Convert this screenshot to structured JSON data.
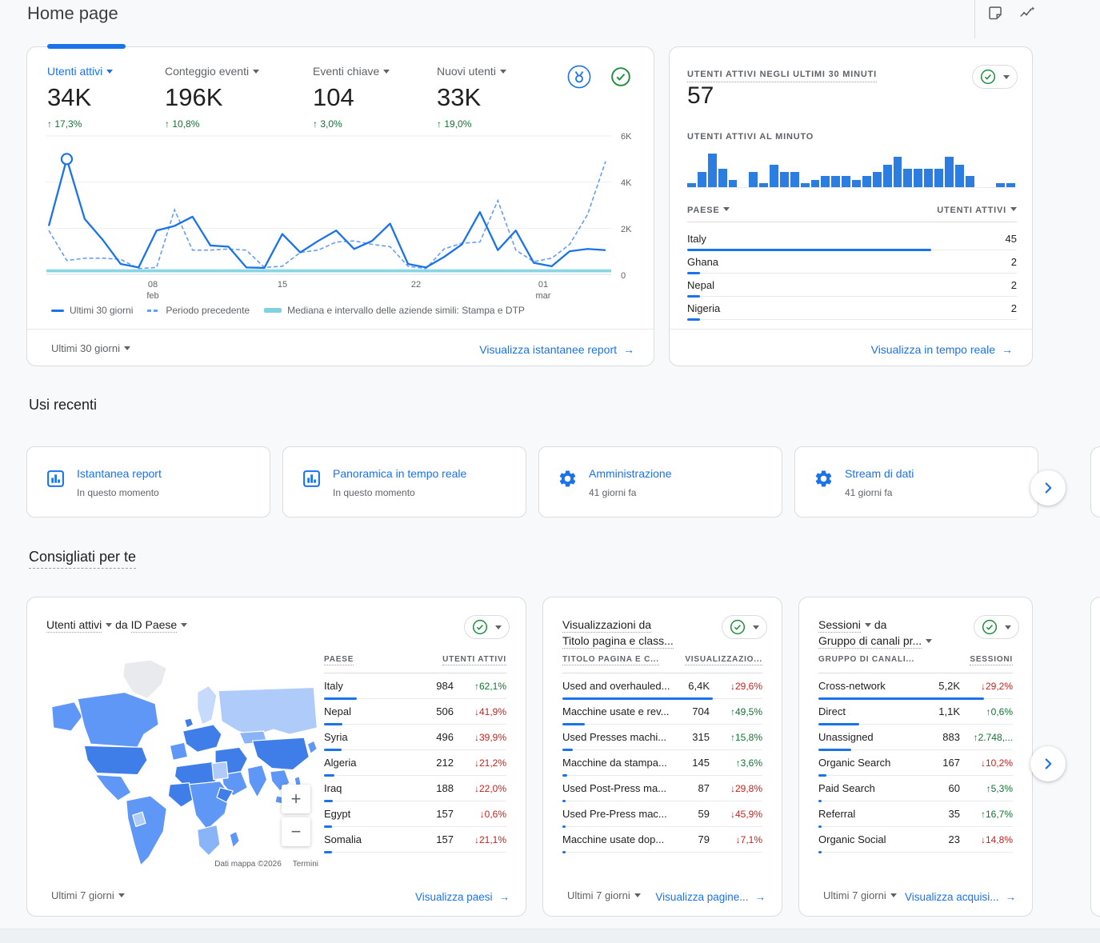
{
  "theme": {
    "accent": "#1a73e8",
    "green": "#137333",
    "red": "#c5221f",
    "teal": "#7fd3e0",
    "text": "#202124",
    "muted": "#5f6368",
    "border": "#dadce0",
    "bg": "#f8f9fa",
    "prevline": "#669df6",
    "barblue": "#2b7de2"
  },
  "header": {
    "title": "Home page",
    "icons": [
      "note-icon",
      "insights-icon"
    ]
  },
  "overview_card": {
    "metrics": [
      {
        "label": "Utenti attivi",
        "value": "34K",
        "delta": "17,3%",
        "direction": "up",
        "selected": true
      },
      {
        "label": "Conteggio eventi",
        "value": "196K",
        "delta": "10,8%",
        "direction": "up",
        "selected": false
      },
      {
        "label": "Eventi chiave",
        "value": "104",
        "delta": "3,0%",
        "direction": "up",
        "selected": false
      },
      {
        "label": "Nuovi utenti",
        "value": "33K",
        "delta": "19,0%",
        "direction": "up",
        "selected": false
      }
    ],
    "y_ticks": [
      "6K",
      "4K",
      "2K",
      "0"
    ],
    "x_ticks": [
      {
        "l1": "08",
        "l2": "feb"
      },
      {
        "l1": "15",
        "l2": ""
      },
      {
        "l1": "22",
        "l2": ""
      },
      {
        "l1": "01",
        "l2": "mar"
      }
    ],
    "legend": [
      {
        "label": "Ultimi 30 giorni"
      },
      {
        "label": "Periodo precedente"
      },
      {
        "label": "Mediana e intervallo delle aziende simili: Stampa e DTP"
      }
    ],
    "footer": {
      "range": "Ultimi 30 giorni",
      "link": "Visualizza istantanee report"
    }
  },
  "chart_data": [
    {
      "type": "line",
      "title": "Utenti attivi - Ultimi 30 giorni",
      "x_tick_labels": [
        "08 feb",
        "15",
        "22",
        "01 mar"
      ],
      "ylim": [
        0,
        6000
      ],
      "y_ticks": [
        0,
        2000,
        4000,
        6000
      ],
      "grid": true,
      "legend_position": "bottom",
      "series": [
        {
          "name": "Ultimi 30 giorni",
          "style": "solid",
          "values": [
            2100,
            5000,
            2400,
            1500,
            450,
            300,
            1900,
            2100,
            2500,
            1250,
            1200,
            300,
            280,
            1750,
            950,
            1450,
            1900,
            1100,
            1450,
            2200,
            450,
            300,
            750,
            1300,
            2700,
            1050,
            1900,
            500,
            350,
            1000,
            1100,
            1050
          ]
        },
        {
          "name": "Periodo precedente",
          "style": "dashed",
          "values": [
            1900,
            600,
            700,
            700,
            650,
            250,
            300,
            2800,
            1050,
            1050,
            1100,
            1050,
            300,
            350,
            950,
            1050,
            1400,
            1450,
            1300,
            1200,
            350,
            250,
            1100,
            1350,
            1400,
            3200,
            1050,
            550,
            700,
            1300,
            2600,
            4900
          ]
        }
      ],
      "median_band": {
        "label": "Mediana e intervallo delle aziende simili: Stampa e DTP",
        "median": 150,
        "range": [
          70,
          240
        ]
      },
      "highlight_point": {
        "series": "Ultimi 30 giorni",
        "index": 1,
        "value": 5000
      }
    },
    {
      "type": "bar",
      "title": "Utenti attivi al minuto",
      "ylim": [
        0,
        10
      ],
      "values": [
        1,
        4,
        9,
        5,
        2,
        0,
        4,
        1,
        6,
        4,
        4,
        1,
        2,
        3,
        3,
        3,
        2,
        3,
        4,
        6,
        8,
        5,
        5,
        5,
        5,
        8,
        6,
        3,
        0,
        0,
        1,
        1
      ]
    }
  ],
  "realtime_card": {
    "title": "UTENTI ATTIVI NEGLI ULTIMI 30 MINUTI",
    "value": "57",
    "bars_title": "UTENTI ATTIVI AL MINUTO",
    "table": {
      "col1": "PAESE",
      "col2": "UTENTI ATTIVI",
      "rows": [
        {
          "name": "Italy",
          "value": "45",
          "bar_pct": 74
        },
        {
          "name": "Ghana",
          "value": "2",
          "bar_pct": 4
        },
        {
          "name": "Nepal",
          "value": "2",
          "bar_pct": 4
        },
        {
          "name": "Nigeria",
          "value": "2",
          "bar_pct": 4
        }
      ]
    },
    "link": "Visualizza in tempo reale"
  },
  "recent": {
    "title": "Usi recenti",
    "cards": [
      {
        "icon": "report-snapshot-icon",
        "title": "Istantanea report",
        "subtitle": "In questo momento"
      },
      {
        "icon": "realtime-overview-icon",
        "title": "Panoramica in tempo reale",
        "subtitle": "In questo momento"
      },
      {
        "icon": "admin-gear-icon",
        "title": "Amministrazione",
        "subtitle": "41 giorni fa"
      },
      {
        "icon": "data-stream-gear-icon",
        "title": "Stream di dati",
        "subtitle": "41 giorni fa"
      }
    ]
  },
  "recommended": {
    "title": "Consigliati per te",
    "geo_card": {
      "metric": "Utenti attivi",
      "connector": "da",
      "dimension": "ID Paese",
      "col1": "PAESE",
      "col2": "UTENTI ATTIVI",
      "rows": [
        {
          "name": "Italy",
          "value": "984",
          "delta": "62,1%",
          "dir": "up",
          "bar_pct": 18
        },
        {
          "name": "Nepal",
          "value": "506",
          "delta": "41,9%",
          "dir": "down",
          "bar_pct": 10
        },
        {
          "name": "Syria",
          "value": "496",
          "delta": "39,9%",
          "dir": "down",
          "bar_pct": 9.5
        },
        {
          "name": "Algeria",
          "value": "212",
          "delta": "21,2%",
          "dir": "down",
          "bar_pct": 5.5
        },
        {
          "name": "Iraq",
          "value": "188",
          "delta": "22,0%",
          "dir": "down",
          "bar_pct": 5
        },
        {
          "name": "Egypt",
          "value": "157",
          "delta": "0,6%",
          "dir": "down",
          "bar_pct": 4.5
        },
        {
          "name": "Somalia",
          "value": "157",
          "delta": "21,1%",
          "dir": "down",
          "bar_pct": 4.5
        }
      ],
      "map_attribution": "Dati mappa ©2026",
      "map_terms": "Termini",
      "zoom_in": "+",
      "zoom_out": "−",
      "footer": {
        "range": "Ultimi 7 giorni",
        "link": "Visualizza paesi"
      }
    },
    "pages_card": {
      "title_line1": "Visualizzazioni da",
      "title_line2": "Titolo pagina e class...",
      "col1": "TITOLO PAGINA E C...",
      "col2": "VISUALIZZAZIO...",
      "rows": [
        {
          "name": "Used and overhauled...",
          "value": "6,4K",
          "delta": "29,6%",
          "dir": "down",
          "bar_pct": 75
        },
        {
          "name": "Macchine usate e rev...",
          "value": "704",
          "delta": "49,5%",
          "dir": "up",
          "bar_pct": 11
        },
        {
          "name": "Used Presses machi...",
          "value": "315",
          "delta": "15,8%",
          "dir": "up",
          "bar_pct": 5
        },
        {
          "name": "Macchine da stampa...",
          "value": "145",
          "delta": "3,6%",
          "dir": "up",
          "bar_pct": 2.5
        },
        {
          "name": "Used Post-Press ma...",
          "value": "87",
          "delta": "29,8%",
          "dir": "down",
          "bar_pct": 1.5
        },
        {
          "name": "Used Pre-Press mac...",
          "value": "59",
          "delta": "45,9%",
          "dir": "down",
          "bar_pct": 1.5
        },
        {
          "name": "Macchine usate dop...",
          "value": "79",
          "delta": "7,1%",
          "dir": "down",
          "bar_pct": 1.5
        }
      ],
      "footer": {
        "range": "Ultimi 7 giorni",
        "link": "Visualizza pagine..."
      }
    },
    "channels_card": {
      "title_metric": "Sessioni",
      "title_connector": "da",
      "title_dimension": "Gruppo di canali pr...",
      "col1": "GRUPPO DI CANALI...",
      "col2": "SESSIONI",
      "rows": [
        {
          "name": "Cross-network",
          "value": "5,2K",
          "delta": "29,2%",
          "dir": "down",
          "bar_pct": 85
        },
        {
          "name": "Direct",
          "value": "1,1K",
          "delta": "0,6%",
          "dir": "up",
          "bar_pct": 21
        },
        {
          "name": "Unassigned",
          "value": "883",
          "delta": "2.748,...",
          "dir": "up",
          "bar_pct": 17
        },
        {
          "name": "Organic Search",
          "value": "167",
          "delta": "10,2%",
          "dir": "down",
          "bar_pct": 4
        },
        {
          "name": "Paid Search",
          "value": "60",
          "delta": "5,3%",
          "dir": "up",
          "bar_pct": 1.5
        },
        {
          "name": "Referral",
          "value": "35",
          "delta": "16,7%",
          "dir": "up",
          "bar_pct": 1.5
        },
        {
          "name": "Organic Social",
          "value": "23",
          "delta": "14,8%",
          "dir": "down",
          "bar_pct": 1.5
        }
      ],
      "footer": {
        "range": "Ultimi 7 giorni",
        "link": "Visualizza acquisi..."
      }
    }
  }
}
